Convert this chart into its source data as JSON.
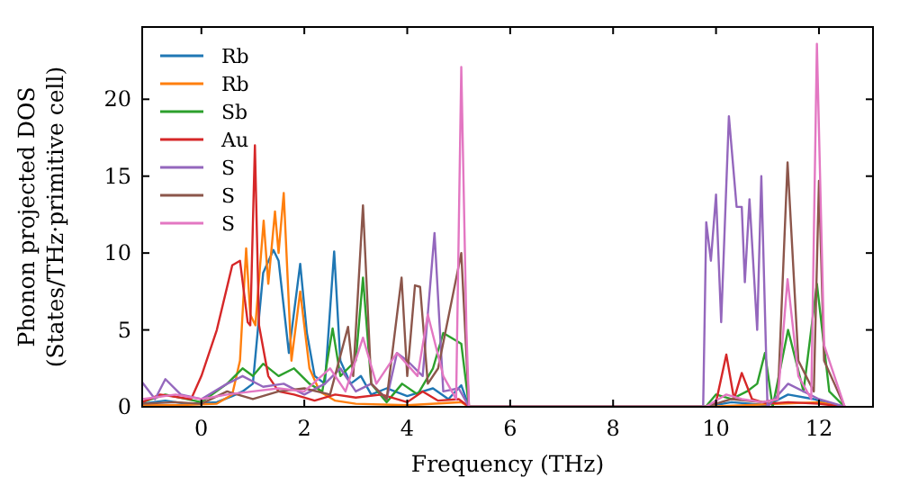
{
  "chart_data": {
    "type": "line",
    "xlabel": "Frequency (THz)",
    "ylabel": "Phonon projected DOS\n(States/THz·primitive cell)",
    "xlim": [
      -1.15,
      13.05
    ],
    "ylim": [
      0,
      24.7
    ],
    "xticks": [
      0,
      2,
      4,
      6,
      8,
      10,
      12
    ],
    "yticks": [
      0,
      5,
      10,
      15,
      20
    ],
    "grid": false,
    "legend": "top left",
    "marker": "none",
    "line_style": "solid",
    "series": [
      {
        "name": "Rb",
        "color": "#1f77b4",
        "x": [
          -1.15,
          -0.7,
          -0.3,
          0.3,
          0.6,
          0.8,
          1.0,
          1.2,
          1.4,
          1.5,
          1.7,
          1.92,
          2.05,
          2.2,
          2.4,
          2.58,
          2.7,
          2.9,
          3.1,
          3.3,
          3.6,
          4.0,
          4.3,
          4.5,
          4.8,
          5.05,
          5.2,
          9.8,
          10.3,
          11.0,
          11.4,
          11.9,
          12.2,
          12.5
        ],
        "values": [
          0.2,
          0.4,
          0.2,
          0.3,
          0.7,
          1.0,
          1.5,
          8.7,
          10.2,
          9.5,
          3.5,
          9.3,
          4.8,
          2.0,
          1.5,
          10.1,
          3.0,
          1.5,
          2.0,
          0.8,
          1.2,
          0.7,
          1.0,
          1.2,
          0.5,
          1.4,
          0,
          0,
          0.3,
          0.1,
          0.8,
          0.5,
          0.2,
          0
        ]
      },
      {
        "name": "Rb",
        "color": "#ff7f0e",
        "x": [
          -1.15,
          -0.5,
          0.3,
          0.6,
          0.75,
          0.87,
          0.95,
          1.05,
          1.21,
          1.3,
          1.43,
          1.5,
          1.6,
          1.75,
          1.92,
          2.1,
          2.3,
          2.6,
          3.0,
          4.0,
          5.05,
          5.2,
          9.8,
          12.0,
          12.5
        ],
        "values": [
          0.1,
          0.1,
          0.2,
          0.8,
          3,
          10.3,
          6,
          5.3,
          12.1,
          8.0,
          12.7,
          10,
          13.9,
          3.0,
          7.5,
          2.5,
          1.0,
          0.4,
          0.2,
          0.1,
          0.3,
          0,
          0,
          0.3,
          0
        ]
      },
      {
        "name": "Sb",
        "color": "#2ca02c",
        "x": [
          -1.15,
          -0.7,
          0,
          0.5,
          0.8,
          1.0,
          1.2,
          1.5,
          1.8,
          2.1,
          2.35,
          2.55,
          2.7,
          3.0,
          3.14,
          3.3,
          3.6,
          3.9,
          4.2,
          4.5,
          4.7,
          5.05,
          5.2,
          9.8,
          10.0,
          10.3,
          10.6,
          10.8,
          10.95,
          11.1,
          11.4,
          11.7,
          11.96,
          12.2,
          12.5
        ],
        "values": [
          0.3,
          0.8,
          0.3,
          1.5,
          2.5,
          2.0,
          2.8,
          2.0,
          2.5,
          1.5,
          1.0,
          5.1,
          2.0,
          3.0,
          8.4,
          1.5,
          0.3,
          1.5,
          0.8,
          2.5,
          4.8,
          4.1,
          0,
          0,
          0.8,
          0.5,
          1.0,
          1.5,
          3.5,
          0,
          5.0,
          1.0,
          8.0,
          1.0,
          0
        ]
      },
      {
        "name": "Au",
        "color": "#d62728",
        "x": [
          -1.15,
          -0.8,
          -0.2,
          0,
          0.3,
          0.6,
          0.75,
          0.9,
          0.95,
          1.04,
          1.12,
          1.3,
          1.5,
          1.8,
          2.2,
          2.6,
          3.0,
          3.5,
          4.0,
          4.3,
          4.6,
          5.0,
          5.2,
          9.8,
          10.0,
          10.2,
          10.35,
          10.5,
          10.7,
          11.0,
          11.4,
          12.0,
          12.5
        ],
        "values": [
          0.3,
          0.8,
          0.5,
          2.0,
          5.0,
          9.2,
          9.5,
          5.5,
          5.3,
          17.0,
          5.3,
          2.0,
          1.0,
          0.8,
          0.4,
          0.8,
          0.6,
          0.8,
          0.3,
          1.0,
          0.4,
          0.5,
          0,
          0,
          0.3,
          3.4,
          0.5,
          2.2,
          0.5,
          0.2,
          0.3,
          0.2,
          0
        ]
      },
      {
        "name": "S",
        "color": "#9467bd",
        "x": [
          -1.15,
          -0.9,
          -0.7,
          -0.4,
          0,
          0.5,
          0.8,
          1.2,
          1.6,
          2.0,
          2.4,
          2.7,
          3.0,
          3.3,
          3.6,
          3.8,
          4.0,
          4.3,
          4.53,
          4.7,
          5.0,
          5.2,
          9.75,
          9.81,
          9.9,
          10.0,
          10.1,
          10.25,
          10.4,
          10.5,
          10.56,
          10.65,
          10.8,
          10.88,
          11.0,
          11.4,
          12.0,
          12.5
        ],
        "values": [
          1.6,
          0.5,
          1.8,
          0.8,
          0.5,
          1.5,
          2.0,
          1.3,
          1.5,
          0.8,
          1.5,
          2.5,
          1.0,
          1.5,
          0.5,
          3.5,
          3.0,
          2.0,
          11.3,
          1.0,
          1.2,
          0,
          0,
          12.0,
          9.5,
          13.8,
          5.5,
          18.9,
          13.0,
          13.0,
          8.1,
          13.5,
          5.0,
          15.0,
          0,
          1.5,
          0.5,
          0
        ]
      },
      {
        "name": "S",
        "color": "#8c564b",
        "x": [
          -1.15,
          -0.5,
          0,
          0.5,
          1.0,
          1.5,
          2.0,
          2.5,
          2.85,
          2.95,
          3.14,
          3.3,
          3.6,
          3.89,
          4.0,
          4.15,
          4.25,
          4.4,
          4.6,
          5.05,
          5.2,
          9.8,
          10.3,
          10.9,
          11.2,
          11.39,
          11.6,
          11.9,
          12.0,
          12.1,
          12.3,
          12.5
        ],
        "values": [
          0.2,
          0.3,
          0.2,
          1.0,
          0.5,
          1.0,
          1.2,
          0.8,
          5.2,
          2.0,
          13.1,
          1.5,
          0.5,
          8.4,
          2.0,
          7.9,
          7.8,
          1.5,
          2.5,
          10.0,
          0,
          0,
          0.5,
          0.3,
          0.5,
          15.9,
          3.0,
          1.0,
          14.7,
          3.0,
          1.5,
          0
        ]
      },
      {
        "name": "S",
        "color": "#e377c2",
        "x": [
          -1.15,
          -0.5,
          0,
          0.5,
          1.0,
          1.5,
          2.0,
          2.5,
          2.8,
          3.14,
          3.4,
          3.8,
          4.2,
          4.4,
          4.7,
          4.95,
          5.05,
          5.15,
          5.2,
          9.8,
          10.2,
          10.5,
          10.9,
          11.2,
          11.39,
          11.6,
          11.85,
          11.96,
          12.1,
          12.3,
          12.5
        ],
        "values": [
          0.5,
          0.8,
          0.5,
          0.8,
          1.0,
          1.2,
          1.0,
          2.5,
          1.0,
          4.5,
          1.5,
          3.5,
          2.0,
          6.0,
          2.0,
          0.5,
          22.1,
          5.0,
          0,
          0,
          0.8,
          0.5,
          0.3,
          0.5,
          8.3,
          2.0,
          0.5,
          23.6,
          4.0,
          2.0,
          0
        ]
      }
    ]
  }
}
